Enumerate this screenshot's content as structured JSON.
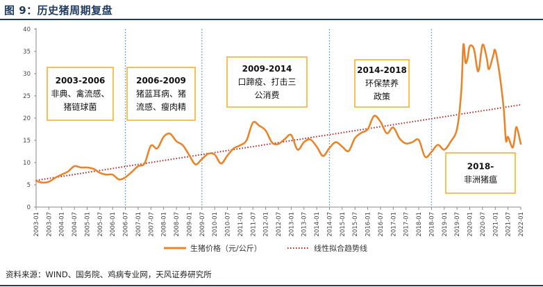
{
  "title": "图 9：历史猪周期复盘",
  "source": "资料来源：WIND、国务院、鸡病专业网，天风证券研究所",
  "chart_data": {
    "type": "line",
    "ylim": [
      0,
      40
    ],
    "yticks": [
      0,
      5,
      10,
      15,
      20,
      25,
      30,
      35,
      40
    ],
    "x_labels": [
      "2003-01",
      "2003-07",
      "2004-01",
      "2004-07",
      "2005-01",
      "2005-07",
      "2006-01",
      "2006-07",
      "2007-01",
      "2007-07",
      "2008-01",
      "2008-07",
      "2009-01",
      "2009-07",
      "2010-01",
      "2010-07",
      "2011-01",
      "2011-07",
      "2012-01",
      "2012-07",
      "2013-01",
      "2013-07",
      "2014-01",
      "2014-07",
      "2015-01",
      "2015-07",
      "2016-01",
      "2016-07",
      "2017-01",
      "2017-07",
      "2018-01",
      "2018-07",
      "2019-01",
      "2019-07",
      "2020-01",
      "2020-07",
      "2021-01",
      "2021-07",
      "2022-01"
    ],
    "grid": false,
    "legend_position": "bottom",
    "series": [
      {
        "name": "生猪价格（元/公斤）",
        "color": "#e8852b",
        "points": [
          [
            "2003-01",
            5.9
          ],
          [
            "2003-04",
            5.5
          ],
          [
            "2003-07",
            5.7
          ],
          [
            "2003-10",
            6.6
          ],
          [
            "2004-01",
            7.3
          ],
          [
            "2004-04",
            8.0
          ],
          [
            "2004-07",
            9.2
          ],
          [
            "2004-10",
            8.9
          ],
          [
            "2005-01",
            8.9
          ],
          [
            "2005-04",
            8.6
          ],
          [
            "2005-07",
            7.7
          ],
          [
            "2005-10",
            7.3
          ],
          [
            "2006-01",
            7.3
          ],
          [
            "2006-04",
            6.2
          ],
          [
            "2006-07",
            6.7
          ],
          [
            "2006-10",
            7.9
          ],
          [
            "2007-01",
            9.2
          ],
          [
            "2007-04",
            9.8
          ],
          [
            "2007-07",
            13.8
          ],
          [
            "2007-10",
            13.2
          ],
          [
            "2008-01",
            15.8
          ],
          [
            "2008-04",
            16.5
          ],
          [
            "2008-07",
            14.8
          ],
          [
            "2008-10",
            13.9
          ],
          [
            "2009-01",
            11.7
          ],
          [
            "2009-04",
            9.6
          ],
          [
            "2009-07",
            10.8
          ],
          [
            "2009-10",
            12.0
          ],
          [
            "2010-01",
            11.8
          ],
          [
            "2010-04",
            9.8
          ],
          [
            "2010-07",
            11.6
          ],
          [
            "2010-10",
            13.2
          ],
          [
            "2011-01",
            13.9
          ],
          [
            "2011-04",
            15.0
          ],
          [
            "2011-07",
            19.0
          ],
          [
            "2011-10",
            18.3
          ],
          [
            "2012-01",
            17.2
          ],
          [
            "2012-04",
            14.5
          ],
          [
            "2012-07",
            14.2
          ],
          [
            "2012-10",
            15.3
          ],
          [
            "2013-01",
            16.2
          ],
          [
            "2013-04",
            12.9
          ],
          [
            "2013-07",
            14.6
          ],
          [
            "2013-10",
            15.2
          ],
          [
            "2014-01",
            13.6
          ],
          [
            "2014-04",
            11.5
          ],
          [
            "2014-07",
            13.3
          ],
          [
            "2014-10",
            14.6
          ],
          [
            "2015-01",
            13.6
          ],
          [
            "2015-04",
            12.6
          ],
          [
            "2015-07",
            15.5
          ],
          [
            "2015-10",
            16.7
          ],
          [
            "2016-01",
            17.5
          ],
          [
            "2016-04",
            20.5
          ],
          [
            "2016-07",
            19.2
          ],
          [
            "2016-10",
            16.6
          ],
          [
            "2017-01",
            17.9
          ],
          [
            "2017-04",
            15.4
          ],
          [
            "2017-07",
            14.3
          ],
          [
            "2017-10",
            14.6
          ],
          [
            "2018-01",
            15.1
          ],
          [
            "2018-04",
            11.3
          ],
          [
            "2018-07",
            12.4
          ],
          [
            "2018-10",
            14.0
          ],
          [
            "2019-01",
            12.9
          ],
          [
            "2019-04",
            14.7
          ],
          [
            "2019-07",
            17.6
          ],
          [
            "2019-09",
            26.0
          ],
          [
            "2019-10",
            36.5
          ],
          [
            "2019-11",
            32.5
          ],
          [
            "2019-12",
            33.5
          ],
          [
            "2020-01",
            36.2
          ],
          [
            "2020-03",
            35.5
          ],
          [
            "2020-05",
            30.5
          ],
          [
            "2020-07",
            36.5
          ],
          [
            "2020-09",
            33.5
          ],
          [
            "2020-10",
            31.0
          ],
          [
            "2020-12",
            34.0
          ],
          [
            "2021-01",
            35.2
          ],
          [
            "2021-03",
            30.0
          ],
          [
            "2021-05",
            22.0
          ],
          [
            "2021-06",
            15.0
          ],
          [
            "2021-07",
            15.8
          ],
          [
            "2021-09",
            13.4
          ],
          [
            "2021-10",
            15.0
          ],
          [
            "2021-11",
            18.0
          ],
          [
            "2022-01",
            14.2
          ]
        ]
      },
      {
        "name": "线性拟合趋势线",
        "color": "#b22222",
        "style": "dotted",
        "points": [
          [
            "2003-01",
            6.0
          ],
          [
            "2022-01",
            23.0
          ]
        ]
      }
    ],
    "period_dividers": [
      "2006-07",
      "2009-07",
      "2014-07",
      "2018-07"
    ],
    "annotations": [
      {
        "lines": [
          "2003-2006",
          "非典、禽流感、",
          "猪链球菌"
        ]
      },
      {
        "lines": [
          "2006-2009",
          "猪蓝耳病、猪",
          "流感、瘦肉精"
        ]
      },
      {
        "lines": [
          "2009-2014",
          "口蹄疫、打击三",
          "公消费"
        ]
      },
      {
        "lines": [
          "2014-2018",
          "环保禁养",
          "政策"
        ]
      },
      {
        "lines": [
          "2018-",
          "非洲猪瘟"
        ]
      }
    ]
  }
}
